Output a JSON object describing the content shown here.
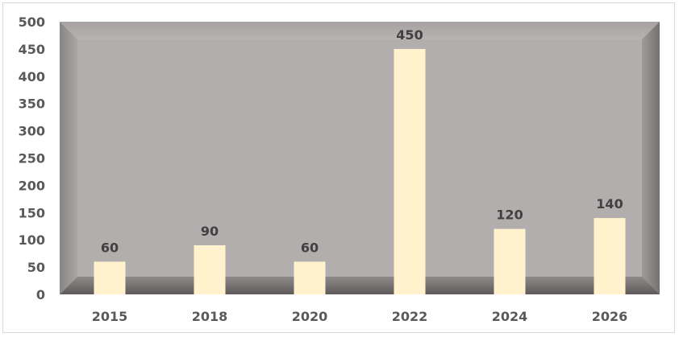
{
  "chart_data": {
    "type": "bar",
    "title": "",
    "xlabel": "",
    "ylabel": "",
    "categories": [
      "2015",
      "2018",
      "2020",
      "2022",
      "2024",
      "2026"
    ],
    "values": [
      60,
      90,
      60,
      450,
      120,
      140
    ],
    "data_labels": [
      "60",
      "90",
      "60",
      "450",
      "120",
      "140"
    ],
    "ylim": [
      0,
      500
    ],
    "yticks": [
      0,
      50,
      100,
      150,
      200,
      250,
      300,
      350,
      400,
      450,
      500
    ],
    "grid": false,
    "legend": "none",
    "colors": {
      "bar": "#fff2cc",
      "plot_background": "#b3aeae"
    }
  }
}
